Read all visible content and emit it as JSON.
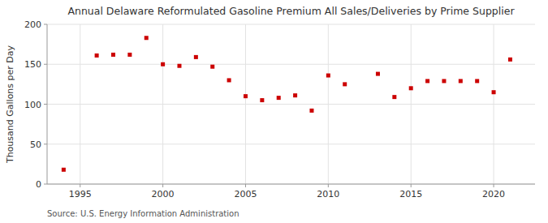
{
  "chart_data": {
    "type": "scatter",
    "title": "Annual Delaware Reformulated Gasoline Premium All Sales/Deliveries by Prime Supplier",
    "ylabel": "Thousand Gallons per Day",
    "annotations": [
      "Source: U.S. Energy Information Administration"
    ],
    "x": [
      1994,
      1996,
      1997,
      1998,
      1999,
      2000,
      2001,
      2002,
      2003,
      2004,
      2005,
      2006,
      2007,
      2008,
      2009,
      2010,
      2011,
      2013,
      2014,
      2015,
      2016,
      2017,
      2018,
      2019,
      2020,
      2021
    ],
    "values": [
      18,
      161,
      162,
      162,
      183,
      150,
      148,
      159,
      147,
      130,
      110,
      105,
      108,
      111,
      92,
      136,
      125,
      138,
      109,
      120,
      129,
      129,
      129,
      129,
      115,
      156
    ],
    "color": "#cc0000",
    "marker": "square",
    "xlim": [
      1993,
      2022.5
    ],
    "ylim": [
      0,
      200
    ],
    "xticks": [
      1995,
      2000,
      2005,
      2010,
      2015,
      2020
    ],
    "yticks": [
      0,
      50,
      100,
      150,
      200
    ],
    "grid": true
  }
}
